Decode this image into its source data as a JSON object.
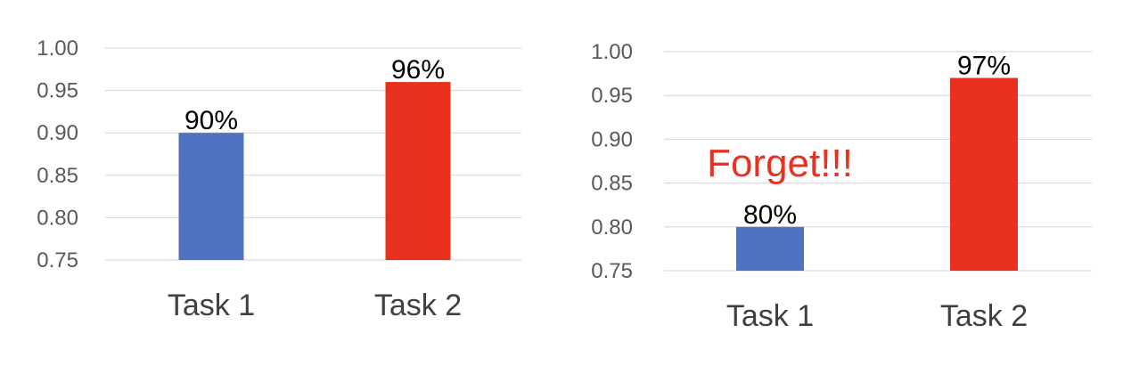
{
  "chart_data": [
    {
      "type": "bar",
      "categories": [
        "Task 1",
        "Task 2"
      ],
      "values": [
        0.9,
        0.96
      ],
      "data_labels": [
        "90%",
        "96%"
      ],
      "bar_colors": [
        "#4f72c1",
        "#e8321f"
      ],
      "ylim": [
        0.75,
        1.0
      ],
      "yticks": [
        "0.75",
        "0.80",
        "0.85",
        "0.90",
        "0.95",
        "1.00"
      ],
      "grid": true,
      "legend": "none",
      "title": "",
      "xlabel": "",
      "ylabel": ""
    },
    {
      "type": "bar",
      "categories": [
        "Task 1",
        "Task 2"
      ],
      "values": [
        0.8,
        0.97
      ],
      "data_labels": [
        "80%",
        "97%"
      ],
      "bar_colors": [
        "#4f72c1",
        "#e8321f"
      ],
      "ylim": [
        0.75,
        1.0
      ],
      "yticks": [
        "0.75",
        "0.80",
        "0.85",
        "0.90",
        "0.95",
        "1.00"
      ],
      "grid": true,
      "legend": "none",
      "title": "",
      "xlabel": "",
      "ylabel": "",
      "annotation": {
        "text": "Forget!!!",
        "color": "#e8321f"
      }
    }
  ]
}
